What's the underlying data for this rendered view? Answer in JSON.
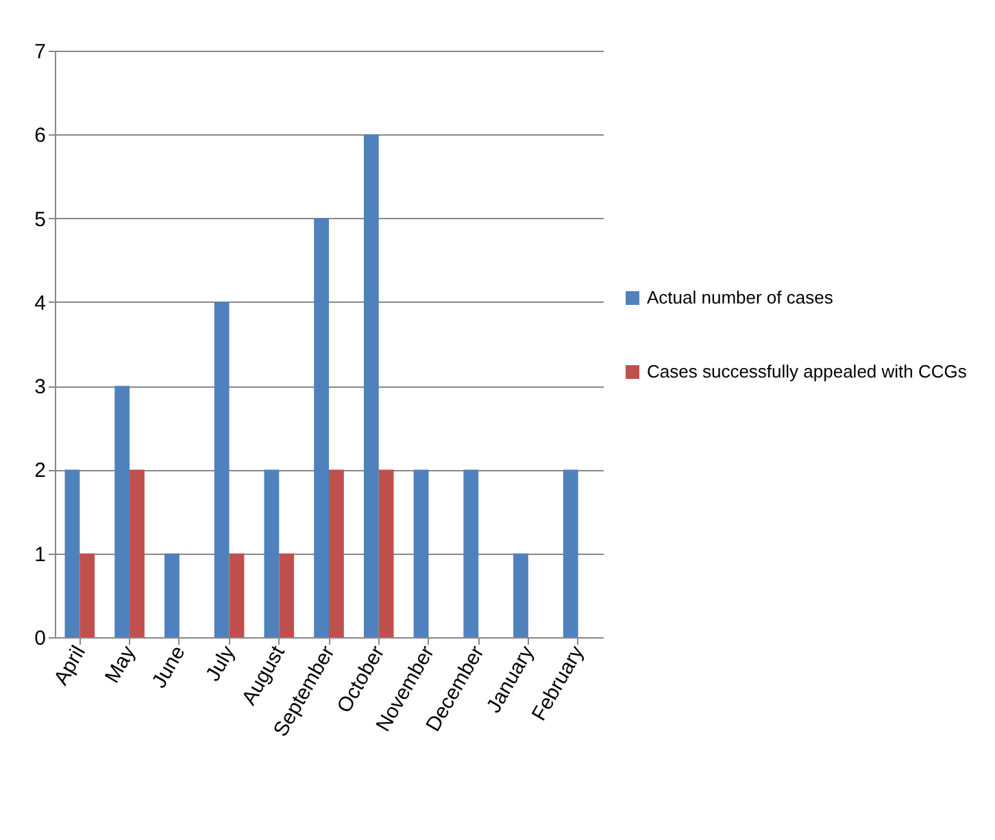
{
  "chart_data": {
    "type": "bar",
    "categories": [
      "April",
      "May",
      "June",
      "July",
      "August",
      "September",
      "October",
      "November",
      "December",
      "January",
      "February"
    ],
    "series": [
      {
        "name": "Actual number of cases",
        "color": "#4f81bd",
        "values": [
          2,
          3,
          1,
          4,
          2,
          5,
          6,
          2,
          2,
          1,
          2
        ]
      },
      {
        "name": "Cases successfully appealed with CCGs",
        "color": "#c0504d",
        "values": [
          1,
          2,
          0,
          1,
          1,
          2,
          2,
          0,
          0,
          0,
          0
        ]
      }
    ],
    "ylim": [
      0,
      7
    ],
    "yticks": [
      0,
      1,
      2,
      3,
      4,
      5,
      6,
      7
    ],
    "grid": "y",
    "legend": "right"
  }
}
